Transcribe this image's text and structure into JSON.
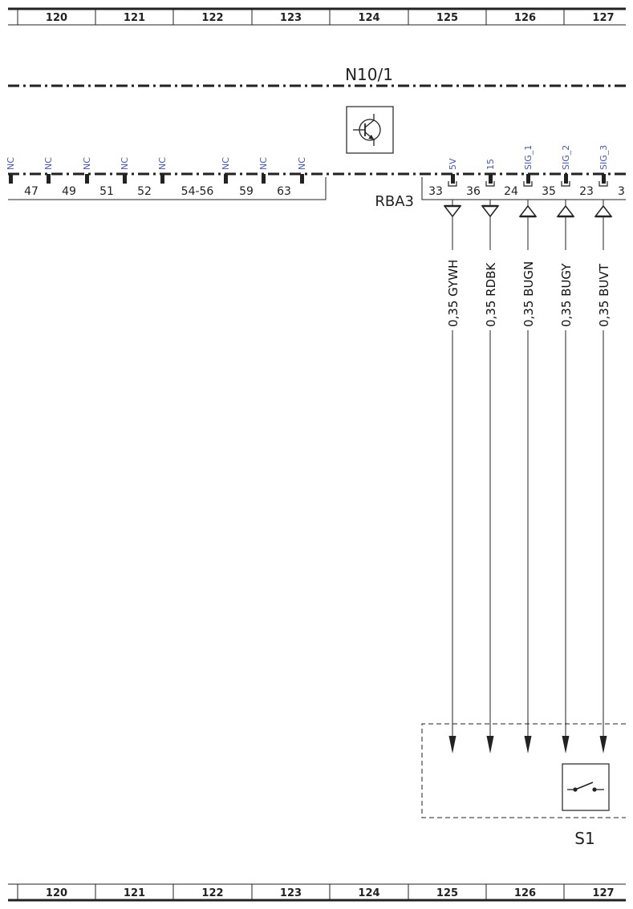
{
  "grid": {
    "columns": [
      "120",
      "121",
      "122",
      "123",
      "124",
      "125",
      "126",
      "127"
    ]
  },
  "module": {
    "name": "N10/1",
    "icon": "transistor-icon",
    "nc_pins": [
      {
        "signal": "NC",
        "pin": ""
      },
      {
        "signal": "NC",
        "pin": "47"
      },
      {
        "signal": "NC",
        "pin": "49"
      },
      {
        "signal": "NC",
        "pin": "51"
      },
      {
        "signal": "NC",
        "pin": "52"
      },
      {
        "signal": "NC",
        "pin": "54-56"
      },
      {
        "signal": "NC",
        "pin": "59"
      },
      {
        "signal": "NC",
        "pin": "63"
      }
    ]
  },
  "connector": {
    "name": "RBA3",
    "pins": [
      {
        "pin": "33",
        "signal": "5V",
        "wire": "0,35 GYWH",
        "direction": "in"
      },
      {
        "pin": "36",
        "signal": "15",
        "wire": "0,35 RDBK",
        "direction": "in"
      },
      {
        "pin": "24",
        "signal": "SIG_1",
        "wire": "0,35 BUGN",
        "direction": "out"
      },
      {
        "pin": "35",
        "signal": "SIG_2",
        "wire": "0,35 BUGY",
        "direction": "out"
      },
      {
        "pin": "23",
        "signal": "SIG_3",
        "wire": "0,35 BUVT",
        "direction": "out"
      }
    ],
    "trailing_pin": "3"
  },
  "switch": {
    "name": "S1",
    "icon": "switch-icon"
  },
  "colors": {
    "line": "#222222",
    "signal_text": "#4a5aa8"
  }
}
